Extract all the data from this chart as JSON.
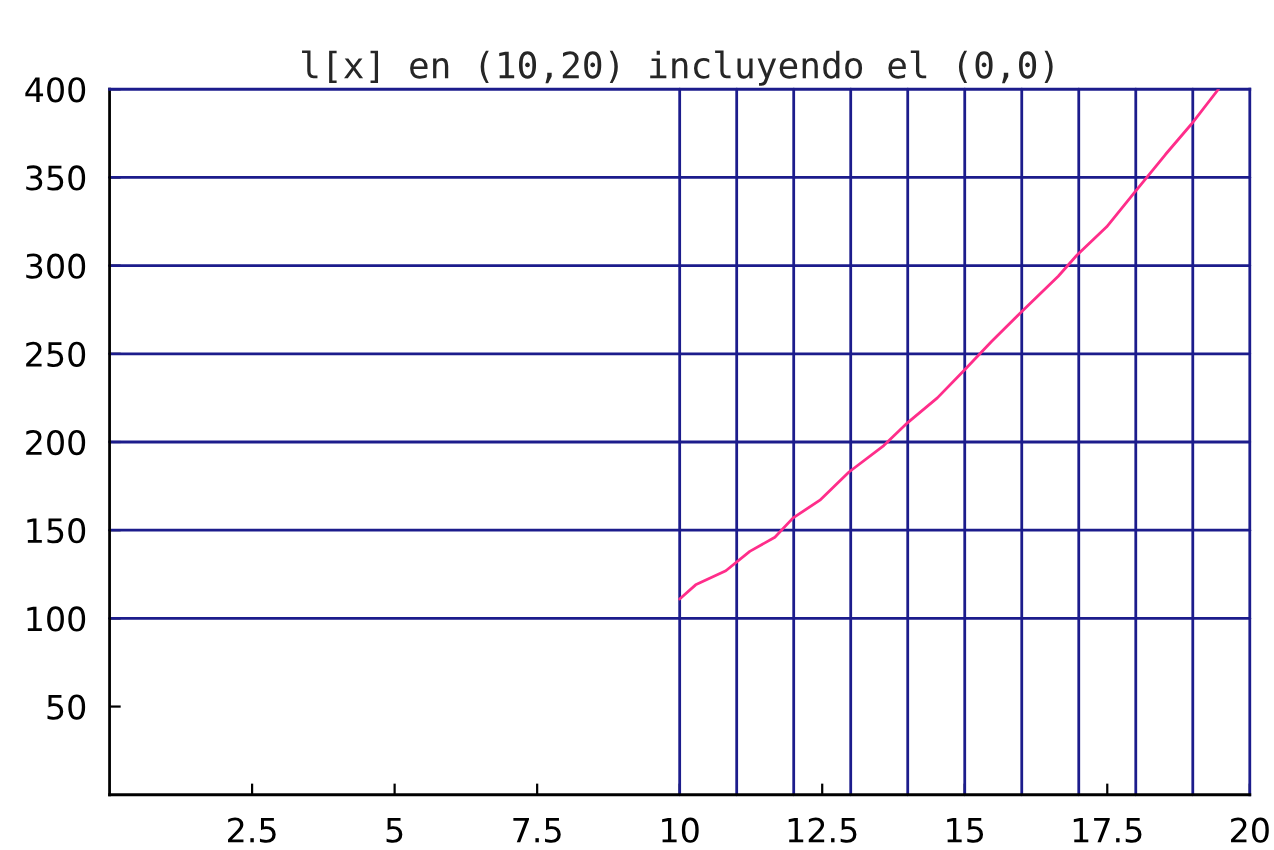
{
  "chart_data": {
    "type": "line",
    "title": "l[x] en (10,20) incluyendo el (0,0)",
    "x": [
      10,
      10.28,
      10.81,
      11.23,
      11.67,
      11.99,
      12.46,
      12.97,
      13.58,
      14.0,
      14.52,
      14.97,
      15.47,
      15.97,
      16.64,
      16.97,
      17.49,
      17.99,
      18.52,
      18.97,
      19.45
    ],
    "series": [
      {
        "color": "#ff2d8a",
        "values": [
          111,
          119,
          127,
          138,
          146,
          157,
          167,
          183,
          198,
          211,
          225,
          240,
          257,
          273,
          294,
          306,
          322,
          342,
          363,
          380,
          400
        ]
      }
    ],
    "xlim": [
      0,
      20
    ],
    "ylim": [
      0,
      400
    ],
    "xticks": [
      2.5,
      5,
      7.5,
      10,
      12.5,
      15,
      17.5,
      20
    ],
    "yticks": [
      50,
      100,
      150,
      200,
      250,
      300,
      350,
      400
    ],
    "ref_lines": [
      {
        "axis": "y",
        "value": 100,
        "color": "#1c1c8c"
      },
      {
        "axis": "y",
        "value": 150,
        "color": "#1c1c8c"
      },
      {
        "axis": "y",
        "value": 200,
        "color": "#1c1c8c"
      },
      {
        "axis": "y",
        "value": 250,
        "color": "#1c1c8c"
      },
      {
        "axis": "y",
        "value": 300,
        "color": "#1c1c8c"
      },
      {
        "axis": "y",
        "value": 350,
        "color": "#1c1c8c"
      },
      {
        "axis": "x",
        "value": 10,
        "color": "#1c1c8c"
      },
      {
        "axis": "x",
        "value": 11,
        "color": "#1c1c8c"
      },
      {
        "axis": "x",
        "value": 12,
        "color": "#1c1c8c"
      },
      {
        "axis": "x",
        "value": 13,
        "color": "#1c1c8c"
      },
      {
        "axis": "x",
        "value": 14,
        "color": "#1c1c8c"
      },
      {
        "axis": "x",
        "value": 15,
        "color": "#1c1c8c"
      },
      {
        "axis": "x",
        "value": 16,
        "color": "#1c1c8c"
      },
      {
        "axis": "x",
        "value": 17,
        "color": "#1c1c8c"
      },
      {
        "axis": "x",
        "value": 18,
        "color": "#1c1c8c"
      },
      {
        "axis": "x",
        "value": 19,
        "color": "#1c1c8c"
      }
    ],
    "marker": "none",
    "line_style": "solid",
    "grid": false
  }
}
